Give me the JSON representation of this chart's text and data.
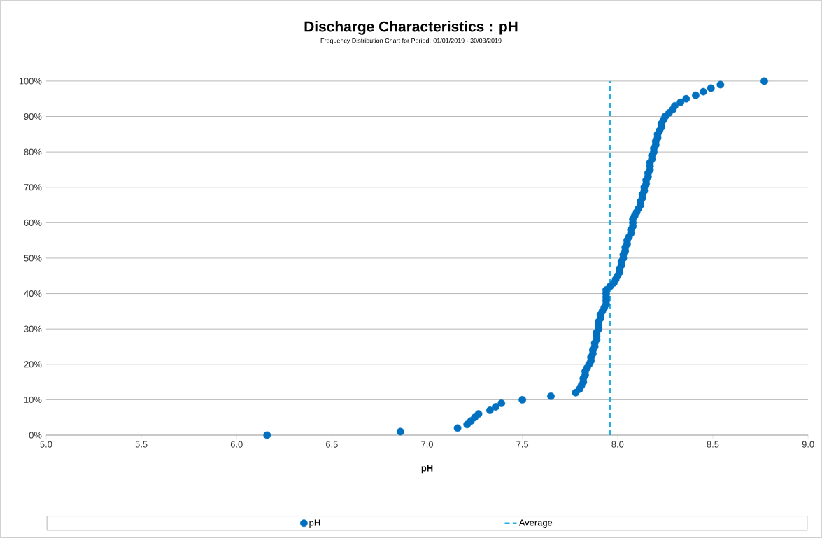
{
  "chart_data": {
    "type": "scatter",
    "title": "Discharge Characteristics : pH",
    "subtitle": "Frequency Distribution Chart for Period: 01/01/2019 - 30/03/2019",
    "xlabel": "pH",
    "series": [
      {
        "name": "pH",
        "color": "#0070c0",
        "x": [
          6.16,
          6.86,
          7.16,
          7.21,
          7.23,
          7.25,
          7.27,
          7.33,
          7.36,
          7.39,
          7.5,
          7.65,
          7.78,
          7.8,
          7.81,
          7.82,
          7.82,
          7.83,
          7.83,
          7.84,
          7.85,
          7.86,
          7.86,
          7.87,
          7.87,
          7.88,
          7.88,
          7.89,
          7.89,
          7.89,
          7.9,
          7.9,
          7.9,
          7.91,
          7.91,
          7.92,
          7.93,
          7.94,
          7.94,
          7.94,
          7.94,
          7.94,
          7.96,
          7.98,
          7.99,
          8.0,
          8.01,
          8.01,
          8.02,
          8.02,
          8.03,
          8.03,
          8.04,
          8.04,
          8.05,
          8.05,
          8.06,
          8.07,
          8.07,
          8.08,
          8.08,
          8.08,
          8.09,
          8.1,
          8.11,
          8.12,
          8.12,
          8.13,
          8.13,
          8.14,
          8.14,
          8.15,
          8.15,
          8.16,
          8.16,
          8.17,
          8.17,
          8.17,
          8.18,
          8.18,
          8.19,
          8.19,
          8.2,
          8.2,
          8.21,
          8.21,
          8.22,
          8.23,
          8.23,
          8.24,
          8.25,
          8.27,
          8.29,
          8.3,
          8.33,
          8.36,
          8.41,
          8.45,
          8.49,
          8.54,
          8.77
        ],
        "values": [
          0,
          1,
          2,
          3,
          4,
          5,
          6,
          7,
          8,
          9,
          10,
          11,
          12,
          13,
          14,
          15,
          16,
          17,
          18,
          19,
          20,
          21,
          22,
          23,
          24,
          25,
          26,
          27,
          28,
          29,
          30,
          31,
          32,
          33,
          34,
          35,
          36,
          37,
          38,
          39,
          40,
          41,
          42,
          43,
          44,
          45,
          46,
          47,
          48,
          49,
          50,
          51,
          52,
          53,
          54,
          55,
          56,
          57,
          58,
          59,
          60,
          61,
          62,
          63,
          64,
          65,
          66,
          67,
          68,
          69,
          70,
          71,
          72,
          73,
          74,
          75,
          76,
          77,
          78,
          79,
          80,
          81,
          82,
          83,
          84,
          85,
          86,
          87,
          88,
          89,
          90,
          91,
          92,
          93,
          94,
          95,
          96,
          97,
          98,
          99,
          100
        ]
      }
    ],
    "ref_lines": [
      {
        "axis": "x",
        "value": 7.96,
        "label": "Average",
        "color": "#1fb0e6",
        "line_style": "dashed"
      }
    ],
    "xlim": [
      5,
      9
    ],
    "ylim": [
      0,
      100
    ],
    "xticks": [
      {
        "value": 5,
        "label": "5.0"
      },
      {
        "value": 5.5,
        "label": "5.5"
      },
      {
        "value": 6,
        "label": "6.0"
      },
      {
        "value": 6.5,
        "label": "6.5"
      },
      {
        "value": 7,
        "label": "7.0"
      },
      {
        "value": 7.5,
        "label": "7.5"
      },
      {
        "value": 8,
        "label": "8.0"
      },
      {
        "value": 8.5,
        "label": "8.5"
      },
      {
        "value": 9,
        "label": "9.0"
      }
    ],
    "yticks": [
      {
        "value": 0,
        "label": "0%"
      },
      {
        "value": 10,
        "label": "10%"
      },
      {
        "value": 20,
        "label": "20%"
      },
      {
        "value": 30,
        "label": "30%"
      },
      {
        "value": 40,
        "label": "40%"
      },
      {
        "value": 50,
        "label": "50%"
      },
      {
        "value": 60,
        "label": "60%"
      },
      {
        "value": 70,
        "label": "70%"
      },
      {
        "value": 80,
        "label": "80%"
      },
      {
        "value": 90,
        "label": "90%"
      },
      {
        "value": 100,
        "label": "100%"
      }
    ],
    "grid": "y",
    "legend": "bottom",
    "marker": "circle"
  }
}
